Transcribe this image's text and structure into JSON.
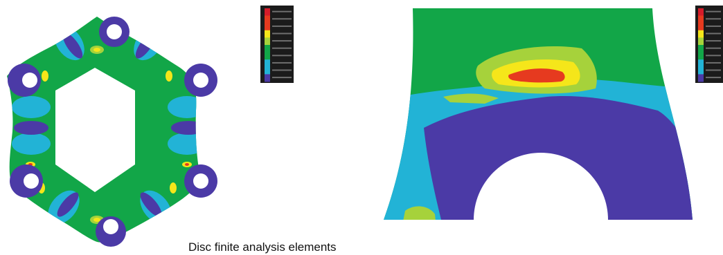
{
  "figure": {
    "caption": "Disc finite analysis elements",
    "stress_colors": {
      "background": "#ffffff",
      "level_1": "#4b3aa6",
      "level_2": "#22b3d6",
      "level_3": "#12a648",
      "level_4": "#a6d23b",
      "level_5": "#f5e61a",
      "level_6": "#e63a1f",
      "level_7": "#d51c2a",
      "legend_dark": "#1b1b1b"
    },
    "legend_scale_steps": 10
  }
}
